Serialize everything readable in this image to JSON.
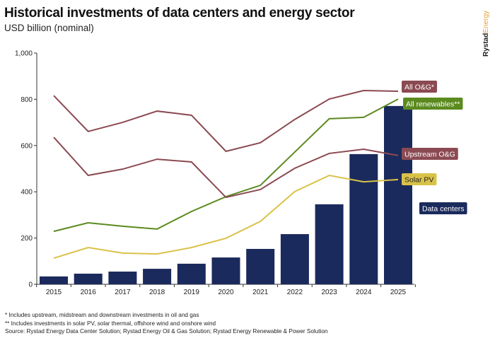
{
  "title": "Historical investments of data centers and energy sector",
  "subtitle": "USD billion (nominal)",
  "logo": {
    "part1": "Rystad",
    "part2": "Energy"
  },
  "notes": [
    "* Includes upstream, midstream and downstream investments in oil and gas",
    "** Includes investments in solar PV, solar thermal, offshore wind and onshore wind",
    "Source: Rystad Energy Data Center Solution; Rystad Energy Oil & Gas Solution; Rystad Energy Renewable & Power Solution"
  ],
  "chart_data": {
    "type": "bar+line",
    "title": "Historical investments of data centers and energy sector",
    "ylabel": "USD billion (nominal)",
    "ylim": [
      0,
      1000
    ],
    "yticks": [
      0,
      200,
      400,
      600,
      800,
      1000
    ],
    "ytick_labels": [
      "0",
      "200",
      "400",
      "600",
      "800",
      "1,000"
    ],
    "grid": false,
    "categories": [
      "2015",
      "2016",
      "2017",
      "2018",
      "2019",
      "2020",
      "2021",
      "2022",
      "2023",
      "2024",
      "2025"
    ],
    "bars": {
      "name": "Data centers",
      "color": "#1b2a5c",
      "values": [
        34,
        46,
        55,
        67,
        89,
        116,
        153,
        217,
        346,
        563,
        771
      ]
    },
    "series": [
      {
        "name": "All O&G*",
        "color": "#8b4a52",
        "values": [
          816,
          661,
          700,
          749,
          731,
          575,
          612,
          713,
          801,
          838,
          835
        ]
      },
      {
        "name": "All renewables**",
        "color": "#5b8a1f",
        "values": [
          229,
          266,
          251,
          239,
          315,
          379,
          428,
          572,
          716,
          722,
          801
        ]
      },
      {
        "name": "Upstream O&G",
        "color": "#8b4a52",
        "values": [
          636,
          471,
          498,
          541,
          529,
          376,
          410,
          502,
          566,
          584,
          557
        ]
      },
      {
        "name": "Solar PV",
        "color": "#d9c248",
        "values": [
          113,
          159,
          135,
          131,
          159,
          199,
          272,
          401,
          471,
          443,
          453
        ]
      }
    ]
  }
}
